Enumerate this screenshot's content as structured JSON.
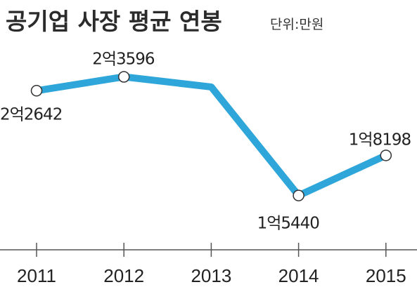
{
  "title": "공기업 사장 평균 연봉",
  "unit": "단위:만원",
  "chart_data": {
    "type": "line",
    "title": "공기업 사장 평균 연봉",
    "unit": "단위:만원",
    "categories": [
      "2011",
      "2012",
      "2013",
      "2014",
      "2015"
    ],
    "values": [
      22642,
      23596,
      22900,
      15440,
      18198
    ],
    "data_labels": [
      "2억2642",
      "2억3596",
      null,
      "1억5440",
      "1억8198"
    ],
    "marker_shown": [
      true,
      true,
      false,
      true,
      true
    ],
    "ylim": [
      12000,
      25500
    ],
    "grid": false,
    "legend": "none",
    "colors": {
      "line": "#2ea6da",
      "marker_fill": "#ffffff",
      "marker_stroke": "#333333",
      "axis": "#555555"
    }
  }
}
